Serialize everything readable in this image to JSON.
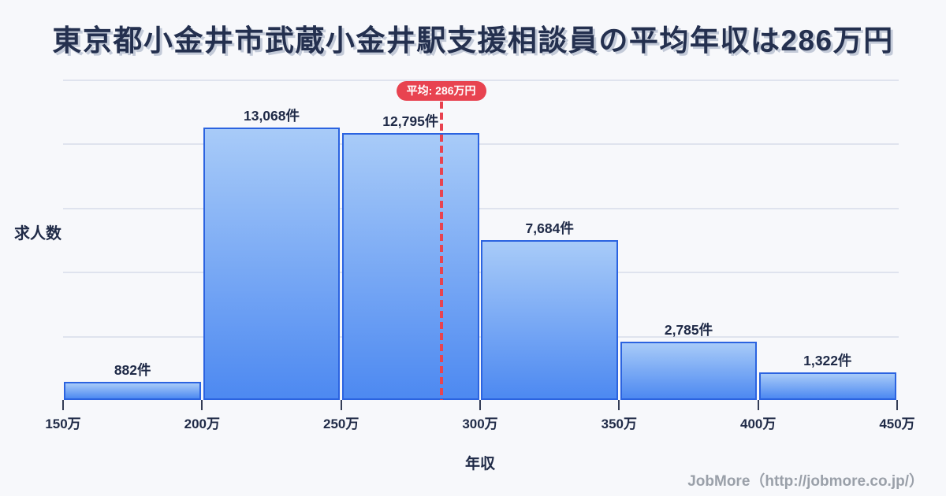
{
  "title": "東京都小金井市武蔵小金井駅支援相談員の平均年収は286万円",
  "footer": "JobMore（http://jobmore.co.jp/）",
  "colors": {
    "background": "#f7f8fb",
    "title_text": "#24304f",
    "label_text": "#1f2a47",
    "bar_border": "#2b63e0",
    "bar_fill_top": "#a8cbf8",
    "bar_fill_bottom": "#4d89f1",
    "mean_red": "#e84350",
    "grid_line": "#dfe3ee",
    "tick_mark": "#333c55",
    "footer_gray": "#9aa0a9"
  },
  "chart_data": {
    "type": "bar",
    "title": "東京都小金井市武蔵小金井駅支援相談員の平均年収は286万円",
    "xlabel": "年収",
    "ylabel": "求人数",
    "x_tick_labels": [
      "150万",
      "200万",
      "250万",
      "300万",
      "350万",
      "400万",
      "450万"
    ],
    "x_range_man_yen": [
      150,
      450
    ],
    "bin_width_man_yen": 50,
    "bins": [
      [
        150,
        200
      ],
      [
        200,
        250
      ],
      [
        250,
        300
      ],
      [
        300,
        350
      ],
      [
        350,
        400
      ],
      [
        400,
        450
      ]
    ],
    "values": [
      882,
      13068,
      12795,
      7684,
      2785,
      1322
    ],
    "value_labels": [
      "882件",
      "13,068件",
      "12,795件",
      "7,684件",
      "2,785件",
      "1,322件"
    ],
    "mean": {
      "value": 286,
      "label": "平均: 286万円"
    },
    "grid": "horizontal-unlabeled",
    "legend": "none"
  }
}
